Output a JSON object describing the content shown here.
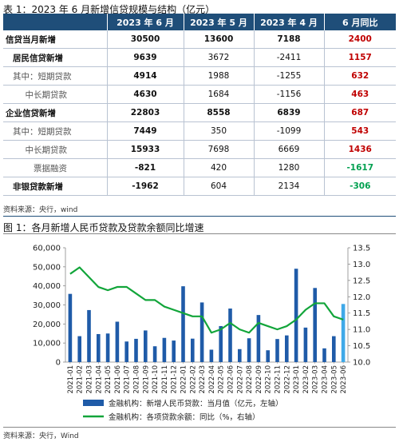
{
  "table": {
    "title": "表 1：2023 年 6 月新增信贷规模与结构（亿元）",
    "headers": [
      "",
      "2023 年 6 月",
      "2023 年 5 月",
      "2023 年 4 月",
      "6 月同比"
    ],
    "rows": [
      {
        "label": "信贷当月新增",
        "level": 1,
        "jun": "30500",
        "may": "13600",
        "apr": "7188",
        "yoy": "2400",
        "yoy_color": "red"
      },
      {
        "label": "居民信贷新增",
        "level": 2,
        "jun": "9639",
        "may": "3672",
        "apr": "-2411",
        "yoy": "1157",
        "yoy_color": "red"
      },
      {
        "label": "其中：短期贷款",
        "level": 3,
        "jun": "4914",
        "may": "1988",
        "apr": "-1255",
        "yoy": "632",
        "yoy_color": "red"
      },
      {
        "label": "中长期贷款",
        "level": 4,
        "jun": "4630",
        "may": "1684",
        "apr": "-1156",
        "yoy": "463",
        "yoy_color": "red"
      },
      {
        "label": "企业信贷新增",
        "level": 1,
        "jun": "22803",
        "may": "8558",
        "apr": "6839",
        "yoy": "687",
        "yoy_color": "red"
      },
      {
        "label": "其中：短期贷款",
        "level": 3,
        "jun": "7449",
        "may": "350",
        "apr": "-1099",
        "yoy": "543",
        "yoy_color": "red"
      },
      {
        "label": "中长期贷款",
        "level": 4,
        "jun": "15933",
        "may": "7698",
        "apr": "6669",
        "yoy": "1436",
        "yoy_color": "red"
      },
      {
        "label": "票据融资",
        "level": 4,
        "jun": "-821",
        "may": "420",
        "apr": "1280",
        "yoy": "-1617",
        "yoy_color": "green"
      },
      {
        "label": "非银贷款新增",
        "level": 2,
        "jun": "-1962",
        "may": "604",
        "apr": "2134",
        "yoy": "-306",
        "yoy_color": "green"
      }
    ],
    "source": "资料来源：央行，wind"
  },
  "figure": {
    "title": "图 1：各月新增人民币贷款及贷款余额同比增速",
    "source": "资料来源：央行，Wind"
  },
  "chart_data": {
    "type": "bar",
    "categories": [
      "2021-01",
      "2021-02",
      "2021-03",
      "2021-04",
      "2021-05",
      "2021-06",
      "2021-07",
      "2021-08",
      "2021-09",
      "2021-10",
      "2021-11",
      "2021-12",
      "2022-01",
      "2022-02",
      "2022-03",
      "2022-04",
      "2022-05",
      "2022-06",
      "2022-07",
      "2022-08",
      "2022-09",
      "2022-10",
      "2022-11",
      "2022-12",
      "2023-01",
      "2023-02",
      "2023-03",
      "2023-04",
      "2023-05",
      "2023-06"
    ],
    "series": [
      {
        "name": "金融机构：新增人民币贷款：当月值（亿元，左轴）",
        "kind": "bar",
        "axis": "left",
        "color": "#1f5ba8",
        "highlight_color": "#3fa9e8",
        "values": [
          35800,
          13600,
          27300,
          14700,
          15000,
          21200,
          10800,
          12200,
          16600,
          8300,
          12700,
          11300,
          39800,
          12300,
          31300,
          6500,
          18900,
          28100,
          6800,
          12500,
          24700,
          6200,
          12100,
          14000,
          49000,
          18100,
          38900,
          7200,
          13600,
          30500
        ]
      },
      {
        "name": "金融机构：各项贷款余额：同比（%，右轴）",
        "kind": "line",
        "axis": "right",
        "color": "#12a53a",
        "values": [
          12.7,
          12.9,
          12.6,
          12.3,
          12.2,
          12.3,
          12.3,
          12.1,
          11.9,
          11.9,
          11.7,
          11.6,
          11.5,
          11.4,
          11.4,
          10.9,
          11.0,
          11.2,
          11.0,
          10.9,
          11.2,
          11.1,
          11.0,
          11.1,
          11.3,
          11.6,
          11.8,
          11.8,
          11.4,
          11.3
        ]
      }
    ],
    "ylim_left": [
      0,
      60000
    ],
    "yticks_left": [
      "0",
      "10,000",
      "20,000",
      "30,000",
      "40,000",
      "50,000",
      "60,000"
    ],
    "ylim_right": [
      10.0,
      13.5
    ],
    "yticks_right": [
      "10.0",
      "10.5",
      "11.0",
      "11.5",
      "12.0",
      "12.5",
      "13.0",
      "13.5"
    ],
    "legend": [
      {
        "label": "金融机构：新增人民币贷款：当月值（亿元，左轴）",
        "color": "#1f5ba8",
        "kind": "bar"
      },
      {
        "label": "金融机构：各项贷款余额：同比（%，右轴）",
        "color": "#12a53a",
        "kind": "line"
      }
    ],
    "legend_position": "bottom",
    "grid": false
  }
}
